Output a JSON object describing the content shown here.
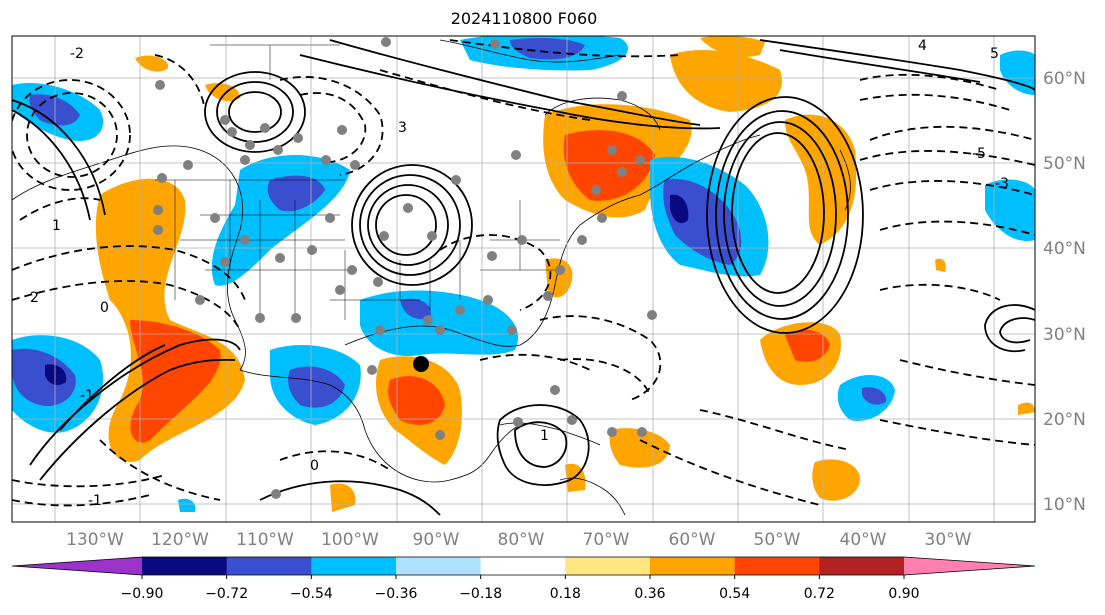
{
  "title": "2024110800 F060",
  "map": {
    "lon_labels": [
      "130°W",
      "120°W",
      "110°W",
      "100°W",
      "90°W",
      "80°W",
      "70°W",
      "60°W",
      "50°W",
      "40°W",
      "30°W"
    ],
    "lat_labels": [
      "60°N",
      "50°N",
      "40°N",
      "30°N",
      "20°N",
      "10°N"
    ],
    "contour_labels": [
      "-2",
      "-1",
      "0",
      "1",
      "2",
      "3",
      "4",
      "5",
      "-5",
      "-3",
      "0",
      "1",
      "-1"
    ]
  },
  "colorbar": {
    "ticks": [
      "−0.90",
      "−0.72",
      "−0.54",
      "−0.36",
      "−0.18",
      "0.18",
      "0.36",
      "0.54",
      "0.72",
      "0.90"
    ],
    "colors": [
      "#9933cc",
      "#0a0a80",
      "#3a4fcf",
      "#00bfff",
      "#b0e0ff",
      "#ffffff",
      "#ffe680",
      "#ffa500",
      "#ff4500",
      "#b22222",
      "#ff80b0"
    ]
  }
}
